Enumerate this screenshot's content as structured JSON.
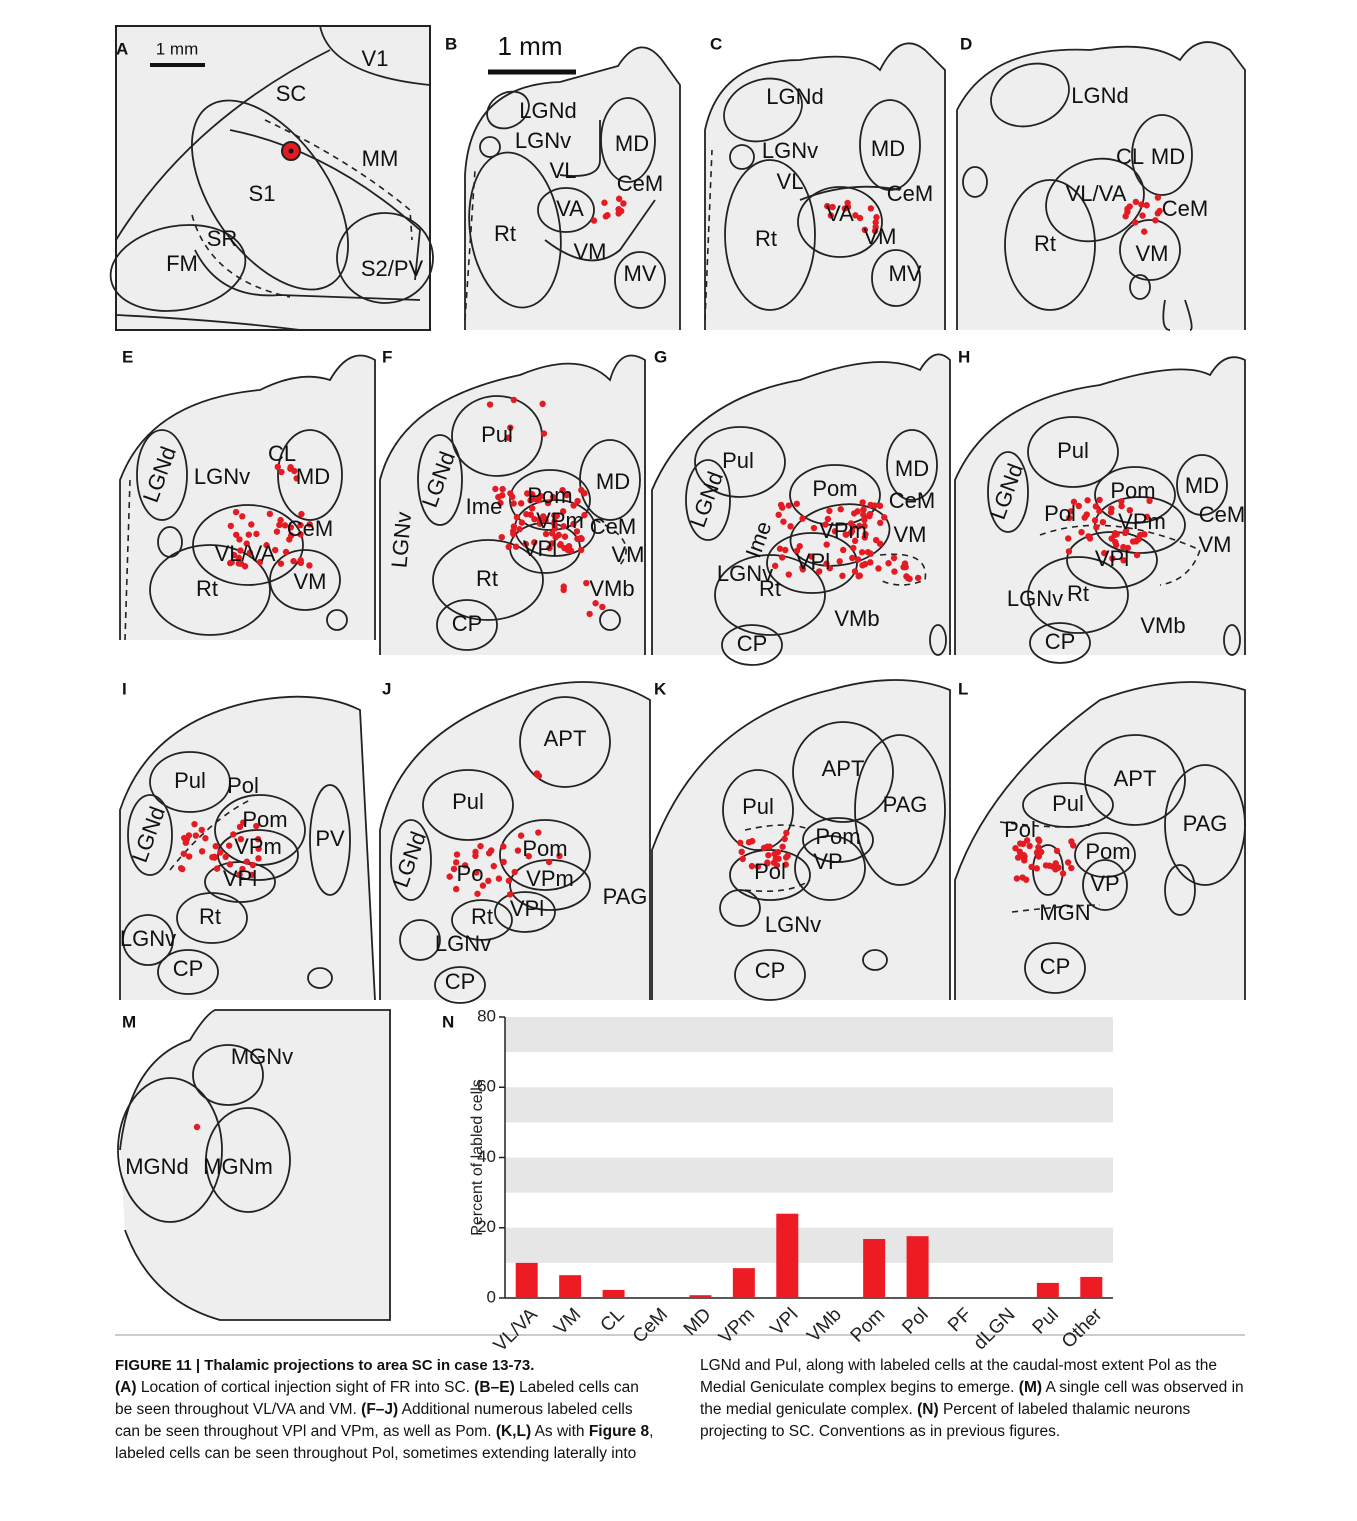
{
  "panels": [
    {
      "letter": "A",
      "labels": [
        "1 mm",
        "SC",
        "V1",
        "MM",
        "S1",
        "SR",
        "FM",
        "S2/PV"
      ]
    },
    {
      "letter": "B",
      "labels": [
        "1 mm",
        "LGNd",
        "LGNv",
        "MD",
        "VL",
        "CeM",
        "VA",
        "Rt",
        "VM",
        "MV"
      ]
    },
    {
      "letter": "C",
      "labels": [
        "LGNd",
        "LGNv",
        "MD",
        "VL",
        "CeM",
        "VA",
        "Rt",
        "VM",
        "MV"
      ]
    },
    {
      "letter": "D",
      "labels": [
        "LGNd",
        "CL",
        "MD",
        "VL/VA",
        "CeM",
        "Rt",
        "VM"
      ]
    },
    {
      "letter": "E",
      "labels": [
        "LGNd",
        "CL",
        "LGNv",
        "MD",
        "CeM",
        "VL/VA",
        "Rt",
        "VM"
      ]
    },
    {
      "letter": "F",
      "labels": [
        "Pul",
        "MD",
        "LGNd",
        "Ime",
        "Pom",
        "CeM",
        "LGNv",
        "VPm",
        "VM",
        "VPl",
        "Rt",
        "VMb",
        "CP"
      ]
    },
    {
      "letter": "G",
      "labels": [
        "Pul",
        "MD",
        "LGNd",
        "Pom",
        "CeM",
        "Ime",
        "VPm",
        "VM",
        "VPl",
        "LGNv",
        "Rt",
        "VMb",
        "CP"
      ]
    },
    {
      "letter": "H",
      "labels": [
        "Pul",
        "MD",
        "LGNd",
        "Pom",
        "CeM",
        "Pol",
        "VPm",
        "VM",
        "VPl",
        "LGNv",
        "Rt",
        "VMb",
        "CP"
      ]
    },
    {
      "letter": "I",
      "labels": [
        "Pul",
        "Pol",
        "Pom",
        "PV",
        "LGNd",
        "VPm",
        "VPl",
        "LGNv",
        "Rt",
        "CP"
      ]
    },
    {
      "letter": "J",
      "labels": [
        "APT",
        "Pul",
        "Pom",
        "LGNd",
        "Po",
        "VPm",
        "PAG",
        "VPl",
        "Rt",
        "LGNv",
        "CP"
      ]
    },
    {
      "letter": "K",
      "labels": [
        "APT",
        "PAG",
        "Pul",
        "Pom",
        "VP",
        "Pol",
        "LGNv",
        "CP"
      ]
    },
    {
      "letter": "L",
      "labels": [
        "APT",
        "Pul",
        "PAG",
        "Pol",
        "Pom",
        "VP",
        "MGN",
        "CP"
      ]
    },
    {
      "letter": "M",
      "labels": [
        "MGNv",
        "MGNd",
        "MGNm"
      ]
    }
  ],
  "chart_data": {
    "type": "bar",
    "label": "N",
    "y_label": "Percent of labled cells",
    "categories": [
      "VL/VA",
      "VM",
      "CL",
      "CeM",
      "MD",
      "VPm",
      "VPl",
      "VMb",
      "Pom",
      "Pol",
      "PF",
      "dLGN",
      "Pul",
      "Other"
    ],
    "values": [
      10,
      6.5,
      2.3,
      0,
      0.8,
      8.5,
      24,
      0,
      16.8,
      17.6,
      0,
      0,
      4.3,
      6
    ],
    "color": "#ed1c24",
    "ylim": [
      0,
      80
    ],
    "yticks": [
      0,
      20,
      40,
      60,
      80
    ],
    "grid": "bands"
  },
  "caption": {
    "title": "FIGURE 11 | Thalamic projections to area SC in case 13-73.",
    "runs": [
      {
        "text": "(A)",
        "bold": true
      },
      {
        "text": " Location of cortical injection sight of FR into SC. ",
        "bold": false
      },
      {
        "text": "(B–E)",
        "bold": true
      },
      {
        "text": " Labeled cells can be seen throughout VL/VA and VM. ",
        "bold": false
      },
      {
        "text": "(F–J)",
        "bold": true
      },
      {
        "text": " Additional numerous labeled cells can be seen throughout VPl and VPm, as well as Pom. ",
        "bold": false
      },
      {
        "text": "(K,L)",
        "bold": true
      },
      {
        "text": " As with ",
        "bold": false
      },
      {
        "text": "Figure 8",
        "bold": true
      },
      {
        "text": ", labeled cells can be seen throughout Pol, sometimes extending laterally into LGNd and Pul, along with labeled cells at the caudal-most extent Pol as the Medial Geniculate complex begins to emerge. ",
        "bold": false
      },
      {
        "text": "(M)",
        "bold": true
      },
      {
        "text": " A single cell was observed in the medial geniculate complex. ",
        "bold": false
      },
      {
        "text": "(N)",
        "bold": true
      },
      {
        "text": " Percent of labeled thalamic neurons projecting to SC. Conventions as in previous figures.",
        "bold": false
      }
    ]
  }
}
